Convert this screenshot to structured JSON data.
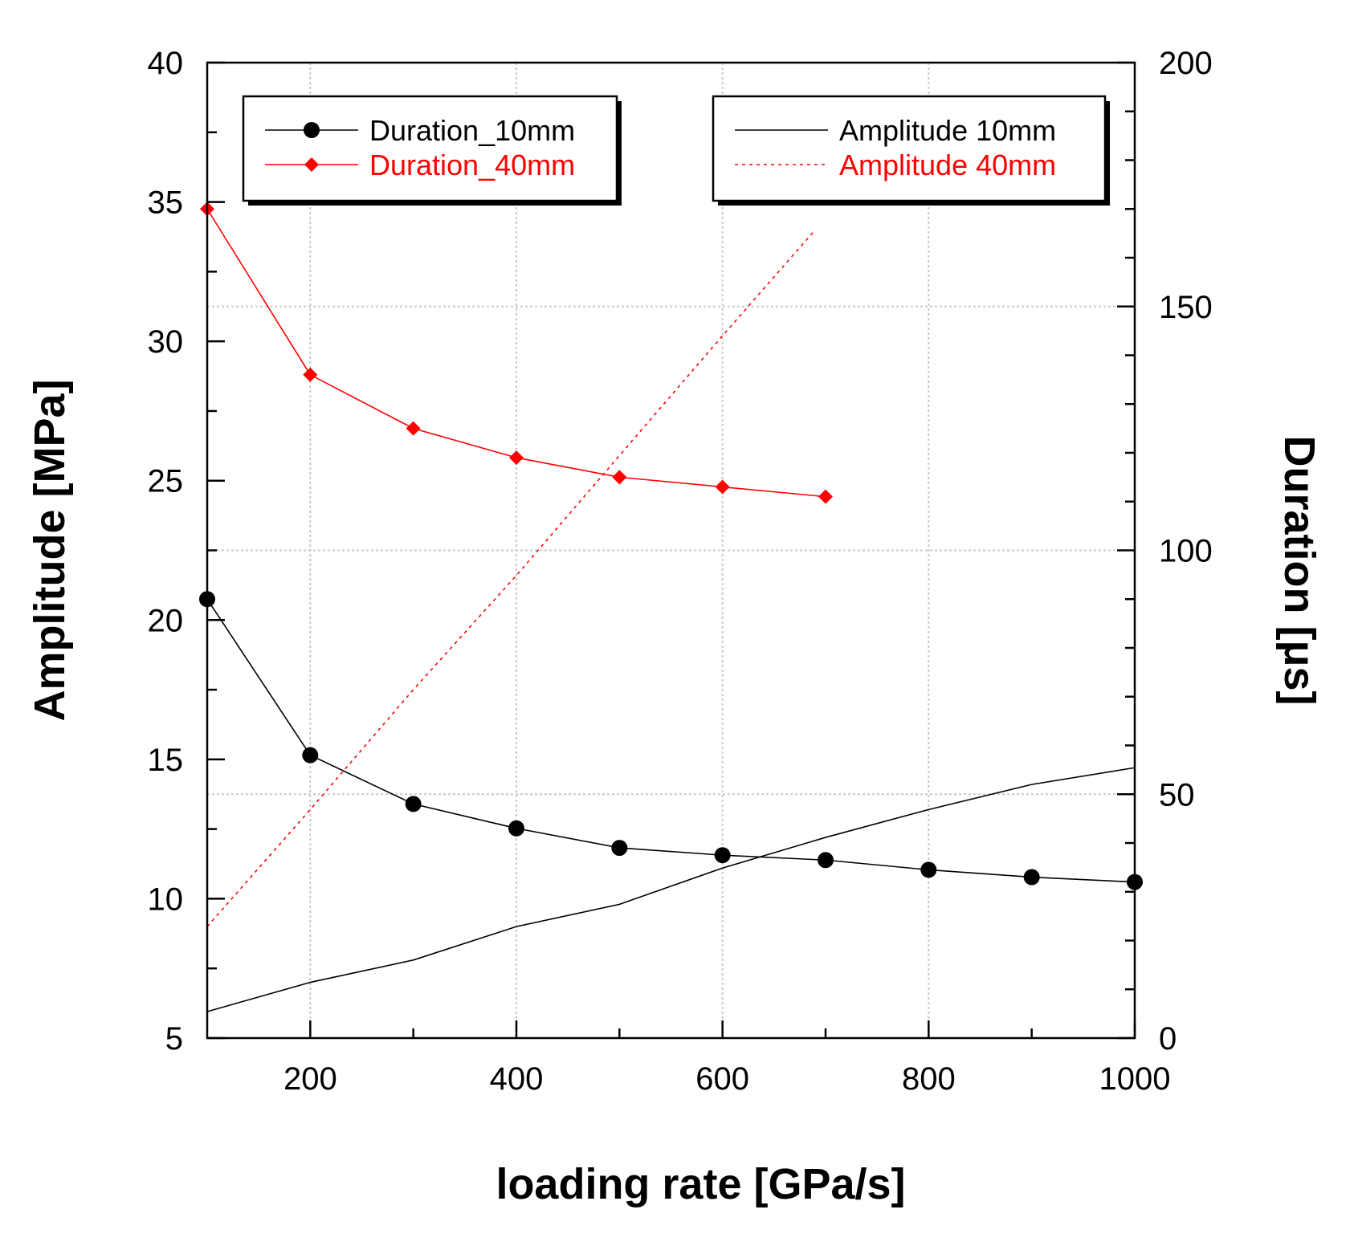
{
  "chart_data": {
    "type": "line",
    "xlabel": "loading rate [GPa/s]",
    "ylabel_left": "Amplitude [MPa]",
    "ylabel_right": "Duration [μs]",
    "xlim": [
      100,
      1000
    ],
    "ylim_left": [
      5,
      40
    ],
    "ylim_right": [
      0,
      200
    ],
    "x_ticks": [
      200,
      400,
      600,
      800,
      1000
    ],
    "x_tick_labels": [
      "200",
      "400",
      "600",
      "800",
      "1000"
    ],
    "y_left_ticks": [
      5,
      10,
      15,
      20,
      25,
      30,
      35,
      40
    ],
    "y_left_tick_labels": [
      "5",
      "10",
      "15",
      "20",
      "25",
      "30",
      "35",
      "40"
    ],
    "y_right_ticks": [
      0,
      50,
      100,
      150,
      200
    ],
    "y_right_tick_labels": [
      "0",
      "50",
      "100",
      "150",
      "200"
    ],
    "grid": true,
    "series": [
      {
        "name": "Duration_10mm",
        "axis": "right",
        "color": "#000000",
        "marker": "circle",
        "line_style": "solid",
        "x": [
          100,
          200,
          300,
          400,
          500,
          600,
          700,
          800,
          900,
          1000
        ],
        "values": [
          90,
          58,
          48,
          43,
          39,
          37.5,
          36.5,
          34.5,
          33,
          32
        ]
      },
      {
        "name": "Duration_40mm",
        "axis": "right",
        "color": "#ff0000",
        "marker": "diamond",
        "line_style": "solid",
        "x": [
          100,
          200,
          300,
          400,
          500,
          600,
          700
        ],
        "values": [
          170,
          136,
          125,
          119,
          115,
          113,
          111
        ]
      },
      {
        "name": "Amplitude 10mm",
        "axis": "left",
        "color": "#000000",
        "marker": "none",
        "line_style": "solid",
        "x": [
          100,
          200,
          300,
          400,
          500,
          600,
          700,
          800,
          900,
          1000
        ],
        "values": [
          5.95,
          7.0,
          7.8,
          9.0,
          9.8,
          11.1,
          12.2,
          13.2,
          14.1,
          14.7
        ]
      },
      {
        "name": "Amplitude 40mm",
        "axis": "left",
        "color": "#ff0000",
        "marker": "none",
        "line_style": "dotted",
        "x": [
          100,
          200,
          300,
          400,
          500,
          600,
          690
        ],
        "values": [
          9.0,
          13.2,
          17.5,
          21.6,
          25.9,
          30.2,
          34.0
        ]
      }
    ],
    "legends": [
      {
        "location": "top-left",
        "entries": [
          {
            "label": "Duration_10mm",
            "color": "#000000",
            "marker": "circle",
            "line_style": "solid"
          },
          {
            "label": "Duration_40mm",
            "color": "#ff0000",
            "marker": "diamond",
            "line_style": "solid"
          }
        ]
      },
      {
        "location": "top-right",
        "entries": [
          {
            "label": "Amplitude 10mm",
            "color": "#000000",
            "marker": "none",
            "line_style": "solid"
          },
          {
            "label": "Amplitude 40mm",
            "color": "#ff0000",
            "marker": "none",
            "line_style": "dotted"
          }
        ]
      }
    ]
  }
}
